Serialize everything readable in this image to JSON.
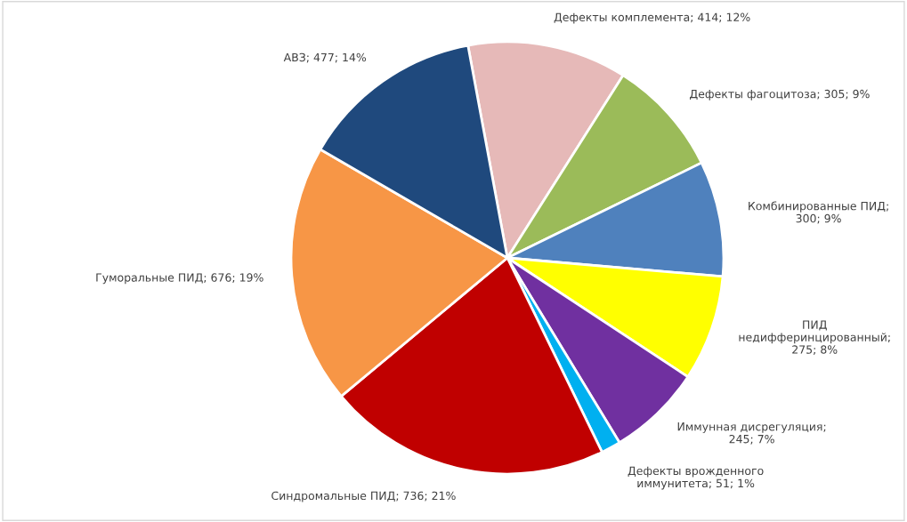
{
  "chart_data": {
    "type": "pie",
    "categories": [
      "Дефекты комплемента; 414; 12%",
      "Дефекты фагоцитоза; 305; 9%",
      "Комбинированные ПИД; 300; 9%",
      "ПИД недифферинцированный; 275; 8%",
      "Иммунная дисрегуляция; 245; 7%",
      "Дефекты врожденного иммунитета; 51; 1%",
      "Синдромальные ПИД; 736; 21%",
      "Гуморальные ПИД; 676; 19%",
      "АВЗ; 477; 14%"
    ],
    "values": [
      414,
      305,
      300,
      275,
      245,
      51,
      736,
      676,
      477
    ],
    "colors": [
      "#e6b9b8",
      "#9bbb59",
      "#4f81bd",
      "#ffff00",
      "#7030a0",
      "#00b0f0",
      "#c00000",
      "#f79646",
      "#1f497d"
    ],
    "legend": false
  }
}
